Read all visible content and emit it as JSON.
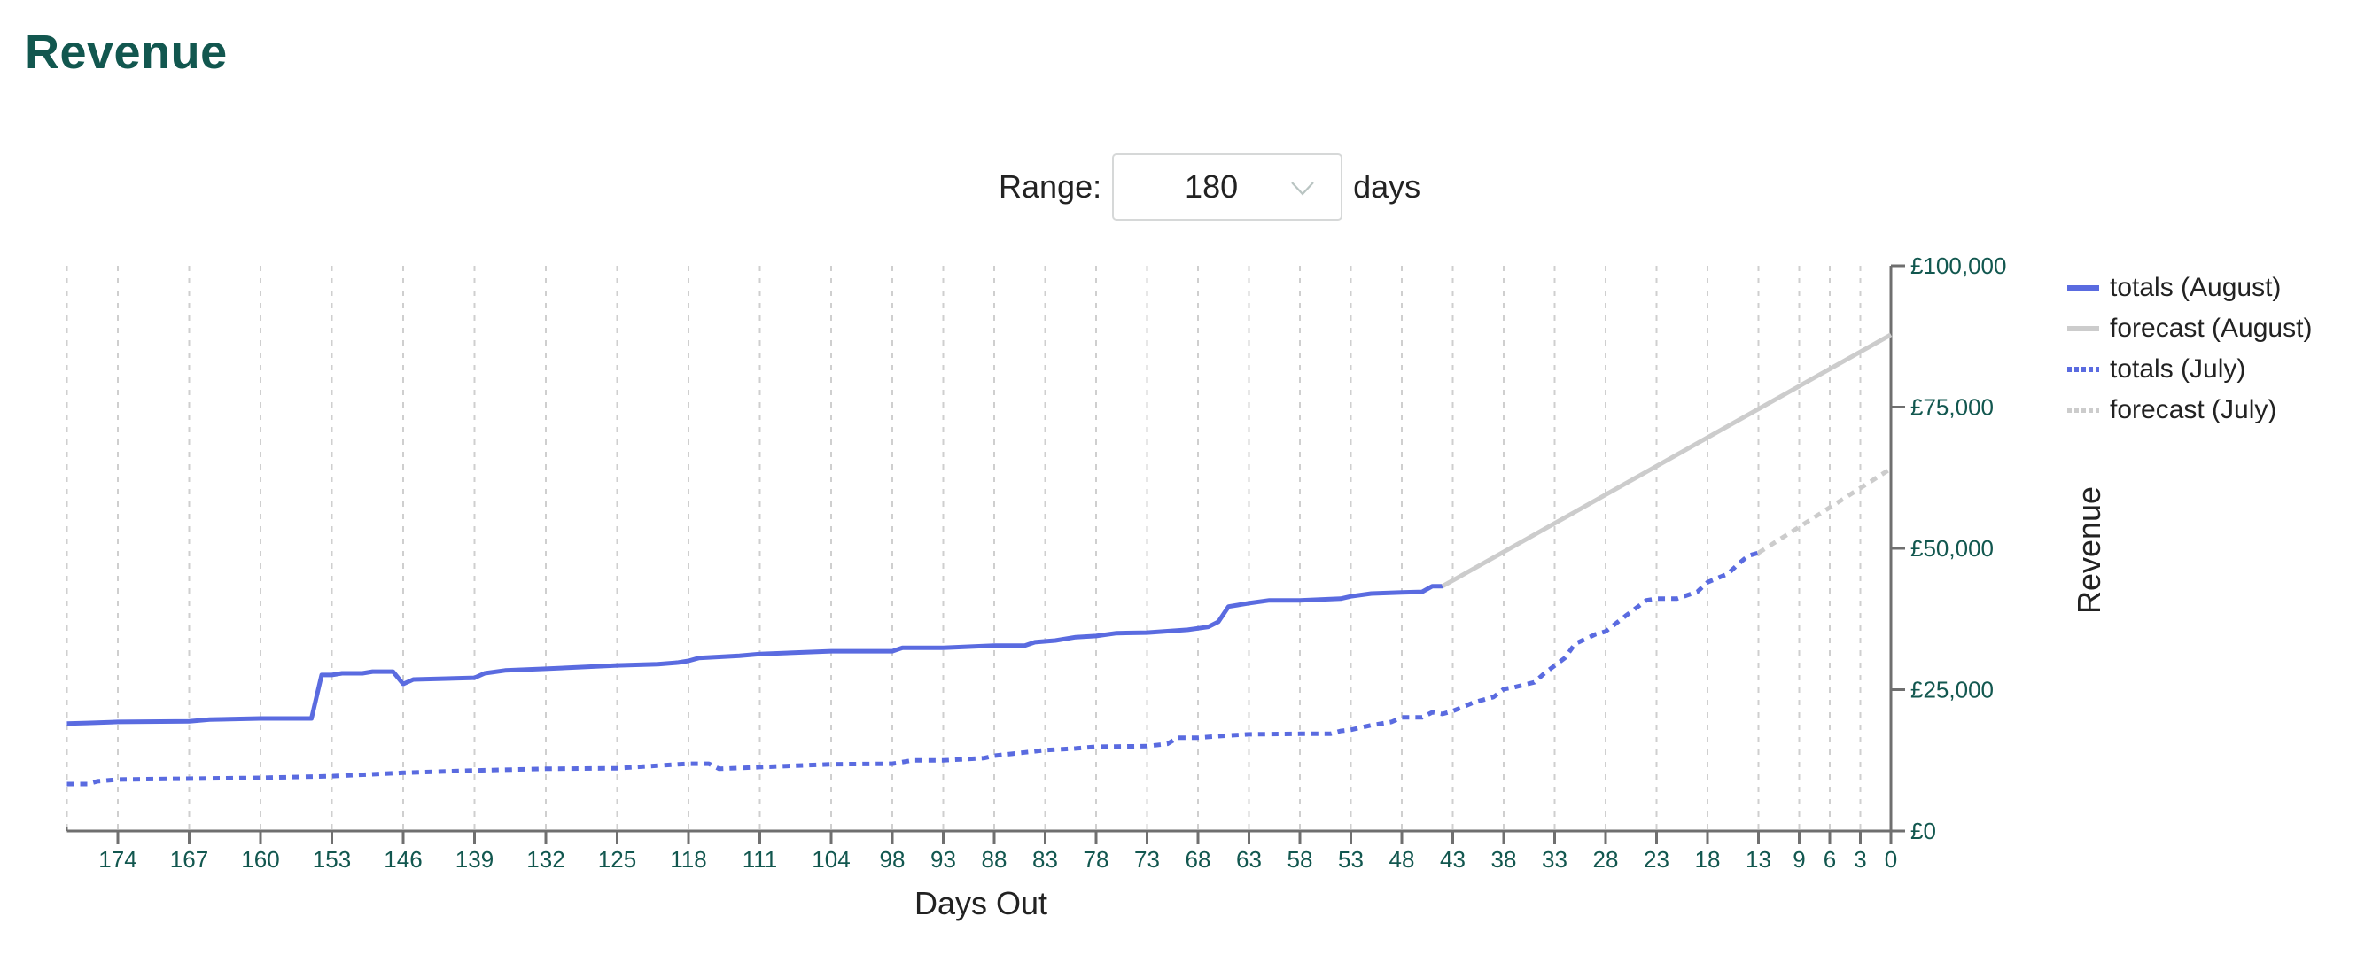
{
  "header": {
    "title": "Revenue"
  },
  "range": {
    "label": "Range:",
    "value": "180",
    "unit": "days",
    "icon": "chevron-down-icon"
  },
  "colors": {
    "accent": "#5a6be0",
    "forecast": "#cccccc",
    "title": "#12574f",
    "tick_label": "#12574f",
    "grid": "#cfcfcf",
    "axis": "#6f6f6f"
  },
  "legend": [
    {
      "label": "totals (August)",
      "color": "#5a6be0",
      "style": "solid"
    },
    {
      "label": "forecast (August)",
      "color": "#cccccc",
      "style": "solid"
    },
    {
      "label": "totals (July)",
      "color": "#5a6be0",
      "style": "dotted"
    },
    {
      "label": "forecast (July)",
      "color": "#cccccc",
      "style": "dotted"
    }
  ],
  "chart_data": {
    "type": "line",
    "title": "Revenue",
    "xlabel": "Days Out",
    "ylabel": "Revenue",
    "xlim": [
      179,
      0
    ],
    "ylim": [
      0,
      100000
    ],
    "grid": {
      "x": true,
      "y": false,
      "style": "dashed"
    },
    "legend_position": "right",
    "x_ticks": [
      174,
      167,
      160,
      153,
      146,
      139,
      132,
      125,
      118,
      111,
      104,
      98,
      93,
      88,
      83,
      78,
      73,
      68,
      63,
      58,
      53,
      48,
      43,
      38,
      33,
      28,
      23,
      18,
      13,
      9,
      6,
      3,
      0
    ],
    "y_ticks": [
      0,
      25000,
      50000,
      75000,
      100000
    ],
    "y_tick_labels": [
      "£0",
      "£25,000",
      "£50,000",
      "£75,000",
      "£100,000"
    ],
    "series": [
      {
        "name": "totals (August)",
        "color": "#5a6be0",
        "style": "solid",
        "x": [
          179,
          177,
          174,
          167,
          165,
          160,
          155,
          154,
          153,
          152,
          150,
          149,
          147,
          146,
          145,
          139,
          138,
          136,
          132,
          125,
          121,
          119,
          118,
          117,
          113,
          111,
          104,
          98,
          97,
          93,
          88,
          85,
          84,
          82,
          80,
          78,
          76,
          73,
          69,
          67,
          66,
          65,
          63,
          61,
          58,
          54,
          53,
          51,
          48,
          46,
          45,
          44
        ],
        "values": [
          19000,
          19100,
          19300,
          19400,
          19700,
          19900,
          19900,
          27600,
          27600,
          27900,
          27900,
          28200,
          28200,
          26000,
          26800,
          27100,
          27900,
          28400,
          28700,
          29300,
          29500,
          29800,
          30100,
          30600,
          31000,
          31300,
          31800,
          31800,
          32400,
          32400,
          32800,
          32800,
          33400,
          33700,
          34300,
          34500,
          35000,
          35100,
          35600,
          36100,
          37000,
          39700,
          40300,
          40800,
          40800,
          41100,
          41500,
          42000,
          42200,
          42300,
          43300,
          43300
        ]
      },
      {
        "name": "forecast (August)",
        "color": "#cccccc",
        "style": "solid",
        "x": [
          44,
          0
        ],
        "values": [
          43300,
          87800
        ]
      },
      {
        "name": "totals (July)",
        "color": "#5a6be0",
        "style": "dotted",
        "x": [
          179,
          177,
          176,
          174,
          160,
          153,
          147,
          146,
          139,
          132,
          125,
          119,
          118,
          116,
          115,
          111,
          104,
          98,
          96,
          93,
          89,
          88,
          85,
          83,
          80,
          78,
          73,
          71,
          70,
          68,
          65,
          63,
          58,
          55,
          54,
          53,
          51,
          49,
          48,
          46,
          45,
          44,
          43,
          41,
          39,
          38,
          37,
          35,
          34,
          32,
          31,
          29,
          28,
          26,
          24,
          23,
          21,
          19,
          18,
          16,
          15,
          14,
          13
        ],
        "values": [
          8300,
          8300,
          8800,
          9100,
          9400,
          9700,
          10200,
          10300,
          10700,
          11000,
          11100,
          11800,
          11900,
          11900,
          11000,
          11300,
          11800,
          11900,
          12500,
          12500,
          12900,
          13300,
          13900,
          14300,
          14600,
          14900,
          15000,
          15400,
          16500,
          16500,
          16900,
          17100,
          17200,
          17200,
          17700,
          17900,
          18700,
          19300,
          20100,
          20100,
          21000,
          20700,
          21200,
          22700,
          23700,
          25100,
          25400,
          26300,
          27900,
          30600,
          33100,
          34800,
          35300,
          38100,
          40800,
          41100,
          41100,
          42300,
          44000,
          45500,
          47200,
          48700,
          49200
        ]
      },
      {
        "name": "forecast (July)",
        "color": "#cccccc",
        "style": "dotted",
        "x": [
          13,
          0
        ],
        "values": [
          49200,
          64100
        ]
      }
    ]
  }
}
